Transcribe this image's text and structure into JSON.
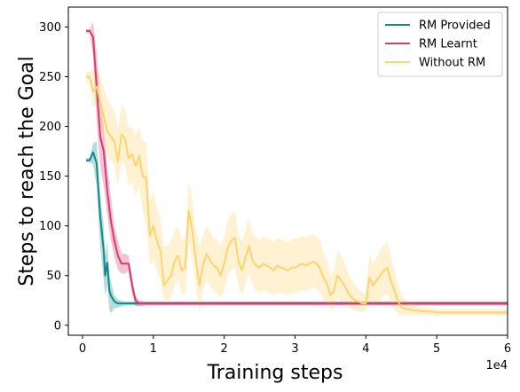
{
  "chart_data": {
    "type": "line",
    "title": "",
    "xlabel": "Training steps",
    "ylabel": "Steps to reach the Goal",
    "x_offset_label": "1e4",
    "xlim": [
      -2000,
      60000
    ],
    "ylim": [
      -10,
      320
    ],
    "x_ticks": [
      0,
      10000,
      20000,
      30000,
      40000,
      50000,
      60000
    ],
    "x_tick_labels": [
      "0",
      "1",
      "2",
      "3",
      "4",
      "5",
      "6"
    ],
    "y_ticks": [
      0,
      50,
      100,
      150,
      200,
      250,
      300
    ],
    "y_tick_labels": [
      "0",
      "50",
      "100",
      "150",
      "200",
      "250",
      "300"
    ],
    "grid": false,
    "legend_position": "top-right",
    "series": [
      {
        "name": "RM Provided",
        "color": "#0e8a8a",
        "x": [
          500,
          1000,
          1500,
          2000,
          2500,
          3000,
          3200,
          3500,
          3800,
          4000,
          4500,
          5000,
          6000,
          7000,
          8000,
          10000,
          60000
        ],
        "y": [
          166,
          166,
          174,
          163,
          110,
          75,
          50,
          63,
          35,
          30,
          24,
          22,
          22,
          22,
          22,
          22,
          22
        ],
        "lower": [
          164,
          164,
          162,
          140,
          80,
          45,
          30,
          40,
          15,
          12,
          17,
          18,
          20,
          20,
          20,
          20,
          20
        ],
        "upper": [
          168,
          168,
          183,
          185,
          130,
          100,
          70,
          85,
          50,
          45,
          30,
          26,
          24,
          24,
          24,
          24,
          24
        ]
      },
      {
        "name": "RM Learnt",
        "color": "#d63a72",
        "x": [
          500,
          1000,
          1500,
          2000,
          2500,
          3000,
          3500,
          4000,
          4500,
          5000,
          5500,
          6000,
          6500,
          7000,
          7500,
          8000,
          9000,
          10000,
          60000
        ],
        "y": [
          296,
          296,
          290,
          240,
          190,
          175,
          135,
          105,
          85,
          70,
          62,
          62,
          62,
          40,
          25,
          22,
          22,
          22,
          22
        ],
        "lower": [
          294,
          294,
          270,
          205,
          160,
          140,
          110,
          85,
          68,
          56,
          52,
          52,
          54,
          30,
          19,
          19,
          20,
          20,
          20
        ],
        "upper": [
          298,
          298,
          305,
          275,
          230,
          200,
          160,
          130,
          100,
          85,
          72,
          72,
          70,
          50,
          30,
          25,
          24,
          24,
          24
        ]
      },
      {
        "name": "Without RM",
        "color": "#ffd36e",
        "x": [
          500,
          1000,
          1500,
          2000,
          2500,
          3000,
          3500,
          4000,
          4500,
          5000,
          5500,
          6000,
          6500,
          7000,
          7500,
          8000,
          8500,
          9000,
          9500,
          10000,
          10500,
          11000,
          11500,
          12000,
          12500,
          13000,
          13500,
          14000,
          14500,
          15000,
          15500,
          16000,
          16500,
          17000,
          17500,
          18000,
          18500,
          19000,
          19500,
          20000,
          20500,
          21000,
          21500,
          22000,
          22500,
          23000,
          23500,
          24000,
          24500,
          25000,
          25500,
          26000,
          26500,
          27000,
          27500,
          28000,
          28500,
          29000,
          29500,
          30000,
          30500,
          31000,
          31500,
          32000,
          32500,
          33000,
          33500,
          34000,
          34500,
          35000,
          35500,
          36000,
          36500,
          37000,
          37500,
          38000,
          38500,
          39000,
          39500,
          40000,
          40500,
          41000,
          41500,
          42000,
          42500,
          43000,
          43500,
          44000,
          44500,
          45000,
          46000,
          47000,
          48000,
          49000,
          50000,
          52000,
          55000,
          60000
        ],
        "y": [
          250,
          250,
          235,
          240,
          225,
          210,
          195,
          190,
          185,
          165,
          192,
          188,
          168,
          172,
          160,
          170,
          150,
          148,
          90,
          100,
          85,
          75,
          40,
          45,
          50,
          65,
          70,
          55,
          58,
          115,
          95,
          65,
          40,
          60,
          72,
          65,
          60,
          58,
          50,
          62,
          78,
          85,
          88,
          65,
          55,
          68,
          80,
          65,
          60,
          58,
          62,
          60,
          58,
          55,
          60,
          58,
          57,
          55,
          58,
          58,
          60,
          62,
          60,
          62,
          64,
          62,
          58,
          48,
          42,
          30,
          35,
          50,
          45,
          40,
          32,
          28,
          25,
          24,
          22,
          22,
          48,
          40,
          45,
          50,
          55,
          58,
          45,
          35,
          25,
          18,
          16,
          15,
          14,
          14,
          13,
          13,
          13,
          13
        ],
        "lower": [
          245,
          245,
          220,
          220,
          205,
          185,
          170,
          165,
          160,
          140,
          165,
          160,
          140,
          145,
          130,
          140,
          115,
          100,
          60,
          65,
          55,
          45,
          25,
          25,
          28,
          40,
          45,
          30,
          32,
          85,
          65,
          40,
          10,
          35,
          45,
          40,
          35,
          32,
          28,
          35,
          50,
          55,
          58,
          40,
          30,
          42,
          52,
          40,
          35,
          33,
          36,
          34,
          32,
          30,
          34,
          32,
          32,
          30,
          32,
          32,
          34,
          36,
          34,
          36,
          38,
          36,
          34,
          26,
          22,
          15,
          18,
          28,
          25,
          22,
          18,
          16,
          15,
          14,
          14,
          14,
          25,
          20,
          22,
          26,
          30,
          32,
          22,
          15,
          12,
          10,
          10,
          10,
          10,
          10,
          10,
          10,
          10,
          10
        ],
        "upper": [
          255,
          255,
          258,
          260,
          250,
          240,
          228,
          222,
          215,
          198,
          222,
          218,
          198,
          200,
          190,
          200,
          185,
          185,
          125,
          135,
          118,
          108,
          80,
          80,
          85,
          95,
          100,
          85,
          88,
          145,
          125,
          95,
          80,
          90,
          100,
          95,
          88,
          85,
          80,
          90,
          106,
          112,
          115,
          92,
          85,
          95,
          108,
          92,
          88,
          85,
          90,
          88,
          86,
          84,
          88,
          86,
          85,
          84,
          86,
          88,
          88,
          90,
          88,
          90,
          92,
          90,
          86,
          72,
          66,
          50,
          56,
          75,
          70,
          62,
          52,
          45,
          40,
          36,
          33,
          33,
          72,
          62,
          68,
          75,
          80,
          85,
          70,
          56,
          42,
          30,
          24,
          20,
          18,
          17,
          16,
          16,
          16,
          16
        ]
      }
    ]
  }
}
